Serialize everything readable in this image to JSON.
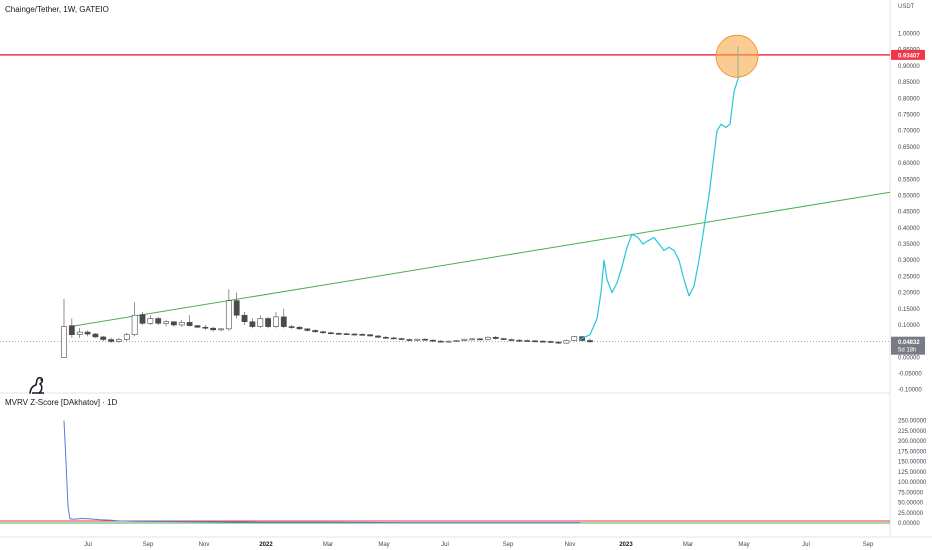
{
  "header": {
    "title": "Chainge/Tether, 1W, GATEIO",
    "unit": "USDT"
  },
  "indicator": {
    "title": "MVRV Z-Score [DAkhatov] · 1D"
  },
  "colors": {
    "resistance": "#f23645",
    "trend": "#4caf50",
    "projection": "#26c6da",
    "indicator": "#5b7bd5",
    "circle": "#f7a84a",
    "candle_up": "#ffffff",
    "candle_down": "#4a4a4a"
  },
  "labels": {
    "resistance_price": "0.93407",
    "last_price": "0.04832",
    "countdown": "5d 18h"
  },
  "chart_data": [
    {
      "type": "candlestick",
      "title": "Chainge/Tether, 1W, GATEIO",
      "ylabel": "USDT",
      "ylim": [
        -0.12,
        1.07
      ],
      "y_ticks": [
        "1.00000",
        "0.95000",
        "0.90000",
        "0.85000",
        "0.80000",
        "0.75000",
        "0.70000",
        "0.65000",
        "0.60000",
        "0.55000",
        "0.50000",
        "0.45000",
        "0.40000",
        "0.35000",
        "0.30000",
        "0.25000",
        "0.20000",
        "0.15000",
        "0.10000",
        "0.05000",
        "0.00000",
        "-0.05000",
        "-0.10000"
      ],
      "x_ticks": [
        {
          "label": "Jul",
          "x": 88
        },
        {
          "label": "Sep",
          "x": 148
        },
        {
          "label": "Nov",
          "x": 204
        },
        {
          "label": "2022",
          "x": 266,
          "bold": true
        },
        {
          "label": "Mar",
          "x": 328
        },
        {
          "label": "May",
          "x": 384
        },
        {
          "label": "Jul",
          "x": 445
        },
        {
          "label": "Sep",
          "x": 508
        },
        {
          "label": "Nov",
          "x": 570
        },
        {
          "label": "2023",
          "x": 626,
          "bold": true
        },
        {
          "label": "Mar",
          "x": 688
        },
        {
          "label": "May",
          "x": 744
        },
        {
          "label": "Jul",
          "x": 806
        },
        {
          "label": "Sep",
          "x": 868
        }
      ],
      "resistance_level": 0.93407,
      "last_price": 0.04832,
      "trendline": {
        "from": [
          70,
          0.095
        ],
        "to": [
          890,
          0.51
        ]
      },
      "candles": [
        {
          "o": 0.0,
          "h": 0.18,
          "l": 0.0,
          "c": 0.095
        },
        {
          "o": 0.098,
          "h": 0.12,
          "l": 0.06,
          "c": 0.07
        },
        {
          "o": 0.07,
          "h": 0.09,
          "l": 0.06,
          "c": 0.078
        },
        {
          "o": 0.078,
          "h": 0.083,
          "l": 0.065,
          "c": 0.072
        },
        {
          "o": 0.072,
          "h": 0.075,
          "l": 0.06,
          "c": 0.063
        },
        {
          "o": 0.063,
          "h": 0.066,
          "l": 0.05,
          "c": 0.055
        },
        {
          "o": 0.055,
          "h": 0.06,
          "l": 0.045,
          "c": 0.049
        },
        {
          "o": 0.049,
          "h": 0.06,
          "l": 0.045,
          "c": 0.055
        },
        {
          "o": 0.055,
          "h": 0.075,
          "l": 0.05,
          "c": 0.07
        },
        {
          "o": 0.07,
          "h": 0.17,
          "l": 0.065,
          "c": 0.13
        },
        {
          "o": 0.132,
          "h": 0.14,
          "l": 0.1,
          "c": 0.105
        },
        {
          "o": 0.105,
          "h": 0.13,
          "l": 0.1,
          "c": 0.12
        },
        {
          "o": 0.12,
          "h": 0.125,
          "l": 0.1,
          "c": 0.105
        },
        {
          "o": 0.105,
          "h": 0.115,
          "l": 0.095,
          "c": 0.11
        },
        {
          "o": 0.11,
          "h": 0.11,
          "l": 0.095,
          "c": 0.1
        },
        {
          "o": 0.1,
          "h": 0.115,
          "l": 0.095,
          "c": 0.108
        },
        {
          "o": 0.108,
          "h": 0.13,
          "l": 0.095,
          "c": 0.098
        },
        {
          "o": 0.098,
          "h": 0.1,
          "l": 0.09,
          "c": 0.093
        },
        {
          "o": 0.093,
          "h": 0.1,
          "l": 0.085,
          "c": 0.09
        },
        {
          "o": 0.09,
          "h": 0.095,
          "l": 0.08,
          "c": 0.085
        },
        {
          "o": 0.085,
          "h": 0.09,
          "l": 0.08,
          "c": 0.088
        },
        {
          "o": 0.088,
          "h": 0.21,
          "l": 0.082,
          "c": 0.175
        },
        {
          "o": 0.175,
          "h": 0.2,
          "l": 0.12,
          "c": 0.13
        },
        {
          "o": 0.13,
          "h": 0.14,
          "l": 0.1,
          "c": 0.11
        },
        {
          "o": 0.11,
          "h": 0.12,
          "l": 0.09,
          "c": 0.095
        },
        {
          "o": 0.095,
          "h": 0.13,
          "l": 0.09,
          "c": 0.12
        },
        {
          "o": 0.12,
          "h": 0.125,
          "l": 0.09,
          "c": 0.095
        },
        {
          "o": 0.095,
          "h": 0.14,
          "l": 0.09,
          "c": 0.125
        },
        {
          "o": 0.125,
          "h": 0.15,
          "l": 0.09,
          "c": 0.095
        },
        {
          "o": 0.095,
          "h": 0.1,
          "l": 0.088,
          "c": 0.093
        },
        {
          "o": 0.093,
          "h": 0.096,
          "l": 0.085,
          "c": 0.088
        },
        {
          "o": 0.088,
          "h": 0.09,
          "l": 0.08,
          "c": 0.083
        },
        {
          "o": 0.083,
          "h": 0.086,
          "l": 0.076,
          "c": 0.079
        },
        {
          "o": 0.079,
          "h": 0.082,
          "l": 0.072,
          "c": 0.076
        },
        {
          "o": 0.076,
          "h": 0.079,
          "l": 0.071,
          "c": 0.074
        },
        {
          "o": 0.074,
          "h": 0.077,
          "l": 0.07,
          "c": 0.073
        },
        {
          "o": 0.073,
          "h": 0.076,
          "l": 0.069,
          "c": 0.072
        },
        {
          "o": 0.072,
          "h": 0.075,
          "l": 0.069,
          "c": 0.071
        },
        {
          "o": 0.071,
          "h": 0.074,
          "l": 0.067,
          "c": 0.07
        },
        {
          "o": 0.07,
          "h": 0.072,
          "l": 0.064,
          "c": 0.066
        },
        {
          "o": 0.066,
          "h": 0.069,
          "l": 0.06,
          "c": 0.062
        },
        {
          "o": 0.062,
          "h": 0.066,
          "l": 0.058,
          "c": 0.06
        },
        {
          "o": 0.06,
          "h": 0.063,
          "l": 0.056,
          "c": 0.058
        },
        {
          "o": 0.058,
          "h": 0.061,
          "l": 0.053,
          "c": 0.055
        },
        {
          "o": 0.055,
          "h": 0.058,
          "l": 0.051,
          "c": 0.053
        },
        {
          "o": 0.053,
          "h": 0.057,
          "l": 0.05,
          "c": 0.056
        },
        {
          "o": 0.056,
          "h": 0.059,
          "l": 0.051,
          "c": 0.053
        },
        {
          "o": 0.053,
          "h": 0.055,
          "l": 0.048,
          "c": 0.05
        },
        {
          "o": 0.05,
          "h": 0.053,
          "l": 0.046,
          "c": 0.048
        },
        {
          "o": 0.048,
          "h": 0.052,
          "l": 0.045,
          "c": 0.05
        },
        {
          "o": 0.05,
          "h": 0.054,
          "l": 0.047,
          "c": 0.052
        },
        {
          "o": 0.052,
          "h": 0.058,
          "l": 0.05,
          "c": 0.056
        },
        {
          "o": 0.056,
          "h": 0.06,
          "l": 0.053,
          "c": 0.057
        },
        {
          "o": 0.057,
          "h": 0.06,
          "l": 0.053,
          "c": 0.055
        },
        {
          "o": 0.055,
          "h": 0.065,
          "l": 0.052,
          "c": 0.062
        },
        {
          "o": 0.062,
          "h": 0.066,
          "l": 0.055,
          "c": 0.058
        },
        {
          "o": 0.058,
          "h": 0.06,
          "l": 0.053,
          "c": 0.055
        },
        {
          "o": 0.055,
          "h": 0.058,
          "l": 0.051,
          "c": 0.053
        },
        {
          "o": 0.053,
          "h": 0.056,
          "l": 0.05,
          "c": 0.052
        },
        {
          "o": 0.052,
          "h": 0.055,
          "l": 0.049,
          "c": 0.051
        },
        {
          "o": 0.051,
          "h": 0.054,
          "l": 0.048,
          "c": 0.05
        },
        {
          "o": 0.05,
          "h": 0.053,
          "l": 0.047,
          "c": 0.049
        },
        {
          "o": 0.049,
          "h": 0.052,
          "l": 0.045,
          "c": 0.047
        },
        {
          "o": 0.047,
          "h": 0.05,
          "l": 0.042,
          "c": 0.044
        },
        {
          "o": 0.044,
          "h": 0.055,
          "l": 0.042,
          "c": 0.052
        },
        {
          "o": 0.052,
          "h": 0.066,
          "l": 0.05,
          "c": 0.064
        },
        {
          "o": 0.064,
          "h": 0.066,
          "l": 0.05,
          "c": 0.052
        },
        {
          "o": 0.052,
          "h": 0.058,
          "l": 0.045,
          "c": 0.048
        }
      ],
      "projection": [
        [
          580,
          0.055
        ],
        [
          590,
          0.07
        ],
        [
          597,
          0.12
        ],
        [
          601,
          0.2
        ],
        [
          604,
          0.3
        ],
        [
          607,
          0.24
        ],
        [
          612,
          0.2
        ],
        [
          617,
          0.23
        ],
        [
          622,
          0.28
        ],
        [
          627,
          0.34
        ],
        [
          632,
          0.38
        ],
        [
          638,
          0.37
        ],
        [
          643,
          0.35
        ],
        [
          648,
          0.36
        ],
        [
          654,
          0.37
        ],
        [
          659,
          0.35
        ],
        [
          664,
          0.33
        ],
        [
          669,
          0.34
        ],
        [
          674,
          0.33
        ],
        [
          679,
          0.3
        ],
        [
          684,
          0.24
        ],
        [
          689,
          0.19
        ],
        [
          694,
          0.22
        ],
        [
          699,
          0.3
        ],
        [
          704,
          0.4
        ],
        [
          709,
          0.5
        ],
        [
          713,
          0.6
        ],
        [
          717,
          0.7
        ],
        [
          721,
          0.72
        ],
        [
          726,
          0.71
        ],
        [
          730,
          0.72
        ],
        [
          734,
          0.82
        ],
        [
          738,
          0.86
        ],
        [
          738,
          0.96
        ]
      ],
      "highlight_circle": {
        "x": 737,
        "y": 0.93
      }
    },
    {
      "type": "line",
      "title": "MVRV Z-Score [DAkhatov] · 1D",
      "ylim": [
        -5,
        262
      ],
      "y_ticks": [
        "250.00000",
        "225.00000",
        "200.00000",
        "175.00000",
        "150.00000",
        "125.00000",
        "100.00000",
        "75.00000",
        "50.00000",
        "25.00000",
        "0.00000"
      ],
      "hlines": [
        {
          "y": 5,
          "color": "#f23645"
        },
        {
          "y": 0,
          "color": "#4caf50"
        }
      ],
      "series": [
        {
          "values": [
            [
              64,
              250
            ],
            [
              66,
              150
            ],
            [
              68,
              40
            ],
            [
              70,
              10
            ],
            [
              74,
              9
            ],
            [
              82,
              11
            ],
            [
              90,
              10
            ],
            [
              100,
              8
            ],
            [
              110,
              7
            ],
            [
              120,
              5
            ],
            [
              140,
              4
            ],
            [
              200,
              3
            ],
            [
              260,
              2
            ],
            [
              320,
              2
            ],
            [
              400,
              1
            ],
            [
              500,
              1
            ],
            [
              580,
              1
            ]
          ]
        }
      ]
    }
  ]
}
